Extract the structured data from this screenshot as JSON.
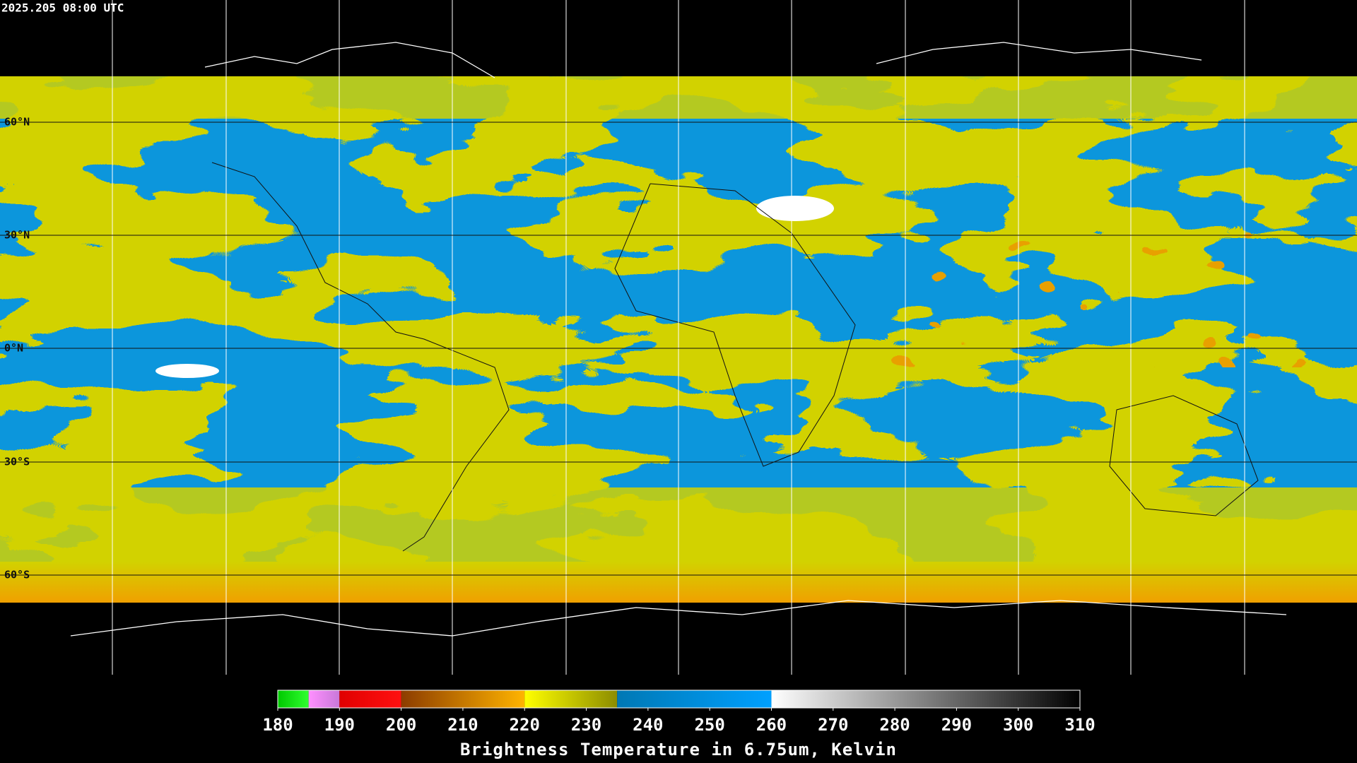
{
  "timestamp": "2025.205 08:00 UTC",
  "latitude_labels": [
    "60°N",
    "30°N",
    "0°N",
    "30°S",
    "60°S"
  ],
  "colorbar": {
    "title": "Brightness Temperature in 6.75um, Kelvin",
    "range": [
      180,
      310
    ],
    "ticks": [
      180,
      190,
      200,
      210,
      220,
      230,
      240,
      250,
      260,
      270,
      280,
      290,
      300,
      310
    ],
    "segments": [
      {
        "from": 180,
        "to": 185,
        "colors": [
          "#00c800",
          "#30ff30"
        ]
      },
      {
        "from": 185,
        "to": 190,
        "colors": [
          "#ff90ff",
          "#c878d8"
        ]
      },
      {
        "from": 190,
        "to": 200,
        "colors": [
          "#e00000",
          "#ff1010"
        ]
      },
      {
        "from": 200,
        "to": 220,
        "colors": [
          "#8c3c00",
          "#ffb400"
        ]
      },
      {
        "from": 220,
        "to": 235,
        "colors": [
          "#ffff00",
          "#8c8c00"
        ]
      },
      {
        "from": 235,
        "to": 260,
        "colors": [
          "#0078b4",
          "#00a0ff"
        ]
      },
      {
        "from": 260,
        "to": 310,
        "colors": [
          "#ffffff",
          "#000000"
        ]
      }
    ]
  }
}
